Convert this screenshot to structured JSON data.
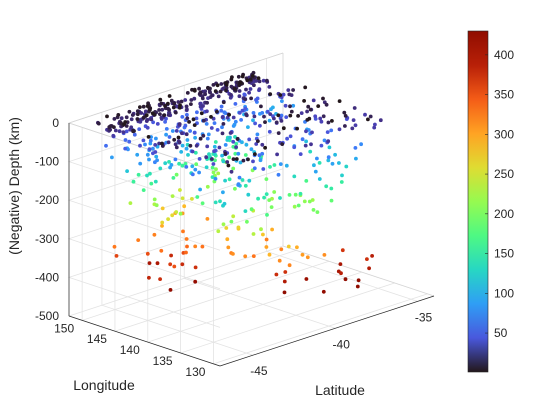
{
  "chart_data": {
    "type": "scatter",
    "title": "",
    "xlabel": "Latitude",
    "ylabel": "Longitude",
    "zlabel": "(Negative) Depth (km)",
    "x_ticks": [
      "-45",
      "-40",
      "-35"
    ],
    "y_ticks": [
      "130",
      "135",
      "140",
      "145",
      "150"
    ],
    "z_ticks": [
      "0",
      "-100",
      "-200",
      "-300",
      "-400",
      "-500"
    ],
    "xlim": [
      -47,
      -34
    ],
    "ylim": [
      129,
      152
    ],
    "zlim": [
      -500,
      0
    ],
    "grid": true,
    "colormap": "turbo",
    "colorbar": {
      "limits": [
        1,
        430
      ],
      "ticks": [
        "50",
        "100",
        "150",
        "200",
        "250",
        "300",
        "350",
        "400"
      ]
    },
    "series": [
      {
        "clusters": [
          {
            "lat_range": [
              -46,
              -36.5
            ],
            "lon_range": [
              147.5,
              151
            ],
            "depth_range": [
              0,
              25
            ],
            "count": 200
          },
          {
            "lat_range": [
              -46,
              -36
            ],
            "lon_range": [
              130,
              150
            ],
            "depth_range": [
              0,
              45
            ],
            "count": 220
          },
          {
            "lat_range": [
              -46,
              -35.5
            ],
            "lon_range": [
              146,
              150
            ],
            "depth_range": [
              40,
              100
            ],
            "count": 90
          },
          {
            "lat_range": [
              -46,
              -37
            ],
            "lon_range": [
              130,
              147
            ],
            "depth_range": [
              60,
              140
            ],
            "count": 100
          },
          {
            "lat_range": [
              -45,
              -37.5
            ],
            "lon_range": [
              145,
              150
            ],
            "depth_range": [
              130,
              230
            ],
            "count": 50
          },
          {
            "lat_range": [
              -44.5,
              -38
            ],
            "lon_range": [
              130,
              142
            ],
            "depth_range": [
              140,
              240
            ],
            "count": 45
          },
          {
            "lat_range": [
              -44,
              -40
            ],
            "lon_range": [
              145,
              150
            ],
            "depth_range": [
              240,
              330
            ],
            "count": 15
          },
          {
            "lat_range": [
              -43,
              -40
            ],
            "lon_range": [
              130,
              140
            ],
            "depth_range": [
              260,
              330
            ],
            "count": 22
          },
          {
            "lat_range": [
              -45.5,
              -42.5
            ],
            "lon_range": [
              142,
              150
            ],
            "depth_range": [
              320,
              420
            ],
            "count": 22
          },
          {
            "lat_range": [
              -41.5,
              -36
            ],
            "lon_range": [
              130,
              135
            ],
            "depth_range": [
              370,
              430
            ],
            "count": 16
          }
        ]
      }
    ]
  }
}
